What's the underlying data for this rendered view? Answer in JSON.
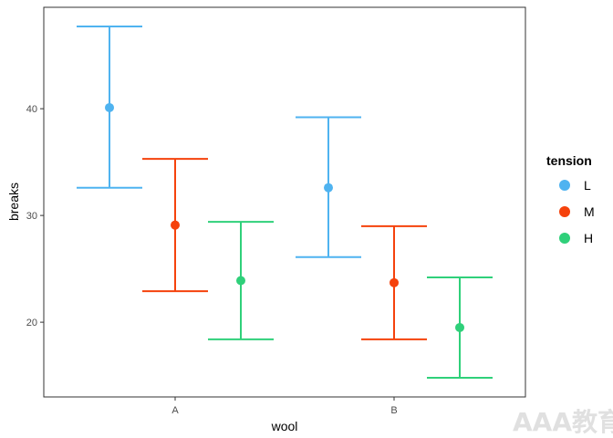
{
  "chart_data": {
    "type": "errorbar",
    "xlabel": "wool",
    "ylabel": "breaks",
    "categories": [
      "A",
      "B"
    ],
    "ylim": [
      13,
      49.5
    ],
    "yticks": [
      20,
      30,
      40
    ],
    "grid": false,
    "legend": {
      "title": "tension",
      "position": "right"
    },
    "series": [
      {
        "name": "L",
        "color": "#4fb3f0",
        "mean": [
          40.1,
          32.6
        ],
        "lower": [
          32.6,
          26.1
        ],
        "upper": [
          47.7,
          39.2
        ]
      },
      {
        "name": "M",
        "color": "#f5420c",
        "mean": [
          29.1,
          23.7
        ],
        "lower": [
          22.9,
          18.4
        ],
        "upper": [
          35.3,
          29.0
        ]
      },
      {
        "name": "H",
        "color": "#2fd07a",
        "mean": [
          23.9,
          19.5
        ],
        "lower": [
          18.4,
          14.8
        ],
        "upper": [
          29.4,
          24.2
        ]
      }
    ]
  },
  "watermark": "AAA教育"
}
